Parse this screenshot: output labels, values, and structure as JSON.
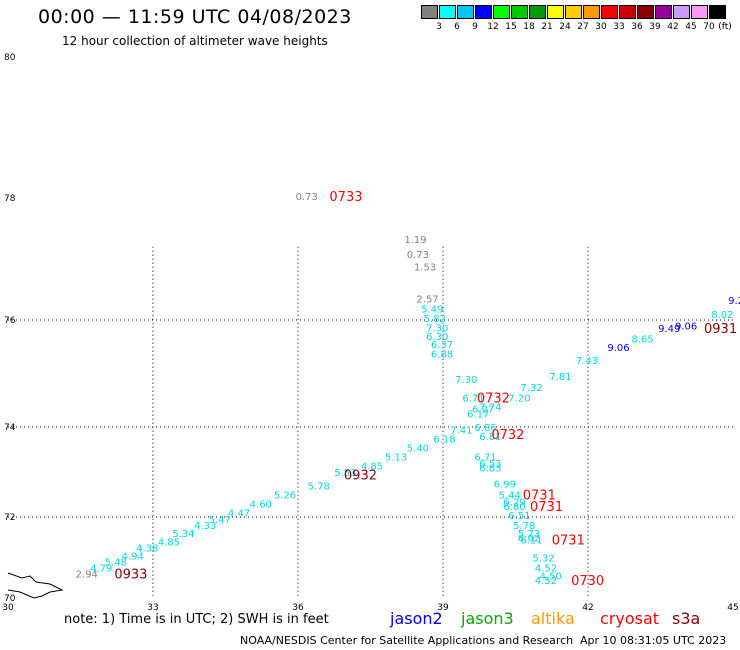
{
  "header": {
    "title": "00:00 — 11:59 UTC 04/08/2023",
    "subtitle": "12 hour collection of altimeter wave heights"
  },
  "legend": {
    "unit": "(ft)",
    "colors": [
      "#808080",
      "#00ffff",
      "#00c8ff",
      "#0000ff",
      "#00ff00",
      "#00cc00",
      "#009900",
      "#ffff00",
      "#ffcc00",
      "#ff9900",
      "#ff0000",
      "#cc0000",
      "#880000",
      "#990099",
      "#cc99ff",
      "#ff99ff",
      "#000000"
    ],
    "labels": [
      "3",
      "6",
      "9",
      "12",
      "15",
      "18",
      "21",
      "24",
      "27",
      "30",
      "33",
      "36",
      "39",
      "42",
      "45",
      "70"
    ]
  },
  "axes": {
    "x_ticks": [
      "30",
      "33",
      "36",
      "39",
      "42",
      "45"
    ],
    "y_ticks": [
      "70",
      "72",
      "74",
      "76",
      "78",
      "80"
    ]
  },
  "colors": {
    "gray": "#808080",
    "cyan": "#00d8e0",
    "blue": "#0000ff",
    "red": "#ff0000",
    "darkred": "#880000"
  },
  "observations": [
    {
      "lon": 35.95,
      "lat": 78.03,
      "text": "0.73",
      "c": "gray"
    },
    {
      "lon": 38.2,
      "lat": 77.33,
      "text": "1.19",
      "c": "gray"
    },
    {
      "lon": 38.25,
      "lat": 77.08,
      "text": "0.73",
      "c": "gray"
    },
    {
      "lon": 38.4,
      "lat": 76.88,
      "text": "1.53",
      "c": "gray"
    },
    {
      "lon": 38.45,
      "lat": 76.35,
      "text": "2.57",
      "c": "gray"
    },
    {
      "lon": 38.55,
      "lat": 76.19,
      "text": "5.49",
      "c": "cyan"
    },
    {
      "lon": 38.6,
      "lat": 76.03,
      "text": "5.82",
      "c": "cyan"
    },
    {
      "lon": 38.65,
      "lat": 75.86,
      "text": "7.30",
      "c": "cyan"
    },
    {
      "lon": 38.65,
      "lat": 75.7,
      "text": "6.30",
      "c": "cyan"
    },
    {
      "lon": 38.75,
      "lat": 75.55,
      "text": "6.37",
      "c": "cyan"
    },
    {
      "lon": 38.75,
      "lat": 75.37,
      "text": "6.88",
      "c": "cyan"
    },
    {
      "lon": 39.25,
      "lat": 74.9,
      "text": "7.30",
      "c": "cyan"
    },
    {
      "lon": 39.4,
      "lat": 74.55,
      "text": "6.71",
      "c": "cyan"
    },
    {
      "lon": 40.35,
      "lat": 74.55,
      "text": "7.20",
      "c": "cyan"
    },
    {
      "lon": 40.6,
      "lat": 74.75,
      "text": "7.32",
      "c": "cyan"
    },
    {
      "lon": 41.2,
      "lat": 74.95,
      "text": "7.81",
      "c": "cyan"
    },
    {
      "lon": 41.75,
      "lat": 75.25,
      "text": "7.43",
      "c": "cyan"
    },
    {
      "lon": 42.4,
      "lat": 75.5,
      "text": "9.06",
      "c": "blue"
    },
    {
      "lon": 42.9,
      "lat": 75.65,
      "text": "8.65",
      "c": "cyan"
    },
    {
      "lon": 43.45,
      "lat": 75.85,
      "text": "9.49",
      "c": "blue"
    },
    {
      "lon": 43.8,
      "lat": 75.9,
      "text": "9.06",
      "c": "blue"
    },
    {
      "lon": 44.55,
      "lat": 76.1,
      "text": "8.02",
      "c": "cyan"
    },
    {
      "lon": 44.9,
      "lat": 76.33,
      "text": "9.2",
      "c": "blue"
    },
    {
      "lon": 39.6,
      "lat": 74.35,
      "text": "6.27",
      "c": "cyan"
    },
    {
      "lon": 39.75,
      "lat": 74.38,
      "text": "7.74",
      "c": "cyan"
    },
    {
      "lon": 39.5,
      "lat": 74.25,
      "text": "6.17",
      "c": "cyan"
    },
    {
      "lon": 39.15,
      "lat": 73.95,
      "text": "7.41",
      "c": "cyan"
    },
    {
      "lon": 39.65,
      "lat": 74.0,
      "text": "6.86",
      "c": "cyan"
    },
    {
      "lon": 39.75,
      "lat": 73.8,
      "text": "6.81",
      "c": "cyan"
    },
    {
      "lon": 38.8,
      "lat": 73.75,
      "text": "6.18",
      "c": "cyan"
    },
    {
      "lon": 38.25,
      "lat": 73.55,
      "text": "5.40",
      "c": "cyan"
    },
    {
      "lon": 37.8,
      "lat": 73.35,
      "text": "5.13",
      "c": "cyan"
    },
    {
      "lon": 37.3,
      "lat": 73.15,
      "text": "4.85",
      "c": "cyan"
    },
    {
      "lon": 36.75,
      "lat": 73.0,
      "text": "5.53",
      "c": "cyan"
    },
    {
      "lon": 36.2,
      "lat": 72.7,
      "text": "5.78",
      "c": "cyan"
    },
    {
      "lon": 35.5,
      "lat": 72.5,
      "text": "5.26",
      "c": "cyan"
    },
    {
      "lon": 35.0,
      "lat": 72.3,
      "text": "4.60",
      "c": "cyan"
    },
    {
      "lon": 34.55,
      "lat": 72.1,
      "text": "4.47",
      "c": "cyan"
    },
    {
      "lon": 34.15,
      "lat": 71.95,
      "text": "5.47",
      "c": "cyan"
    },
    {
      "lon": 33.85,
      "lat": 71.8,
      "text": "4.33",
      "c": "cyan"
    },
    {
      "lon": 33.4,
      "lat": 71.6,
      "text": "5.34",
      "c": "cyan"
    },
    {
      "lon": 33.1,
      "lat": 71.4,
      "text": "4.85",
      "c": "cyan"
    },
    {
      "lon": 32.65,
      "lat": 71.25,
      "text": "4.38",
      "c": "cyan"
    },
    {
      "lon": 32.35,
      "lat": 71.05,
      "text": "4.94",
      "c": "cyan"
    },
    {
      "lon": 32.0,
      "lat": 70.9,
      "text": "5.48",
      "c": "cyan"
    },
    {
      "lon": 31.7,
      "lat": 70.75,
      "text": "4.79",
      "c": "cyan"
    },
    {
      "lon": 31.4,
      "lat": 70.6,
      "text": "2.94",
      "c": "gray"
    },
    {
      "lon": 39.65,
      "lat": 73.35,
      "text": "6.71",
      "c": "cyan"
    },
    {
      "lon": 39.75,
      "lat": 73.2,
      "text": "6.53",
      "c": "cyan"
    },
    {
      "lon": 39.75,
      "lat": 73.1,
      "text": "6.83",
      "c": "cyan"
    },
    {
      "lon": 40.05,
      "lat": 72.75,
      "text": "6.99",
      "c": "cyan"
    },
    {
      "lon": 40.15,
      "lat": 72.5,
      "text": "5.44",
      "c": "cyan"
    },
    {
      "lon": 40.25,
      "lat": 72.35,
      "text": "6.29",
      "c": "cyan"
    },
    {
      "lon": 40.25,
      "lat": 72.25,
      "text": "6.80",
      "c": "cyan"
    },
    {
      "lon": 40.35,
      "lat": 72.05,
      "text": "6.51",
      "c": "cyan"
    },
    {
      "lon": 40.45,
      "lat": 71.8,
      "text": "5.78",
      "c": "cyan"
    },
    {
      "lon": 40.55,
      "lat": 71.6,
      "text": "5.73",
      "c": "cyan"
    },
    {
      "lon": 40.55,
      "lat": 71.5,
      "text": "6.02",
      "c": "cyan"
    },
    {
      "lon": 40.6,
      "lat": 71.45,
      "text": "6.11",
      "c": "cyan"
    },
    {
      "lon": 40.85,
      "lat": 71.0,
      "text": "5.32",
      "c": "cyan"
    },
    {
      "lon": 40.9,
      "lat": 70.75,
      "text": "4.52",
      "c": "cyan"
    },
    {
      "lon": 41.0,
      "lat": 70.55,
      "text": "4.50",
      "c": "cyan"
    },
    {
      "lon": 40.9,
      "lat": 70.45,
      "text": "4.52",
      "c": "cyan"
    }
  ],
  "times": [
    {
      "lon": 36.65,
      "lat": 78.03,
      "text": "0733",
      "c": "red"
    },
    {
      "lon": 39.7,
      "lat": 74.55,
      "text": "0732",
      "c": "red"
    },
    {
      "lon": 40.0,
      "lat": 73.85,
      "text": "0732",
      "c": "red"
    },
    {
      "lon": 36.95,
      "lat": 72.95,
      "text": "0932",
      "c": "darkred"
    },
    {
      "lon": 40.65,
      "lat": 72.5,
      "text": "0731",
      "c": "red"
    },
    {
      "lon": 40.8,
      "lat": 72.25,
      "text": "0731",
      "c": "red"
    },
    {
      "lon": 41.25,
      "lat": 71.45,
      "text": "0731",
      "c": "red"
    },
    {
      "lon": 41.65,
      "lat": 70.45,
      "text": "0730",
      "c": "red"
    },
    {
      "lon": 32.2,
      "lat": 70.6,
      "text": "0933",
      "c": "darkred"
    },
    {
      "lon": 44.4,
      "lat": 75.85,
      "text": "0931",
      "c": "darkred"
    }
  ],
  "notes": {
    "prefix": "note: 1) Time is in UTC; 2) SWH is in feet",
    "satellites": [
      {
        "name": "jason2",
        "color": "#0000ff"
      },
      {
        "name": "jason3",
        "color": "#00aa00"
      },
      {
        "name": "altika",
        "color": "#ff9900"
      },
      {
        "name": "cryosat",
        "color": "#ff0000"
      },
      {
        "name": "s3a",
        "color": "#880000"
      }
    ]
  },
  "credit": "NOAA/NESDIS Center for Satellite Applications and Research",
  "timestamp": "Apr 10 08:31:05 UTC 2023"
}
